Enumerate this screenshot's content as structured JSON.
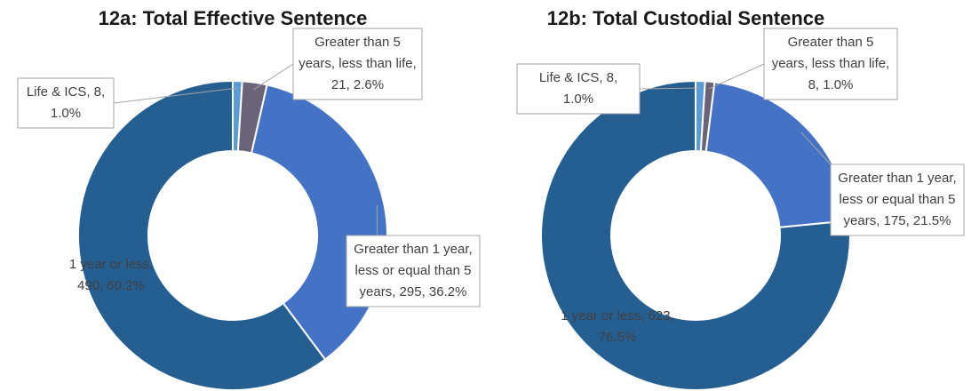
{
  "chart_data": [
    {
      "type": "donut",
      "title": "12a: Total Effective Sentence",
      "categories": [
        "Life & ICS",
        "Greater than 5 years, less than life",
        "Greater than 1 year, less or equal than 5 years",
        "1 year or less"
      ],
      "values": [
        8,
        21,
        295,
        490
      ],
      "value_labels": [
        "Life & ICS, 8, 1.0%",
        "Greater than 5 years, less than life, 21, 2.6%",
        "Greater than 1 year, less or equal than 5 years, 295, 36.2%",
        "1 year or less, 490, 60.2%"
      ],
      "colors": [
        "#5b9bd5",
        "#6b6478",
        "#4472c4",
        "#255e91"
      ]
    },
    {
      "type": "donut",
      "title": "12b: Total Custodial Sentence",
      "categories": [
        "Life & ICS",
        "Greater than 5 years, less than life",
        "Greater than 1 year, less or equal than 5 years",
        "1 year or less"
      ],
      "values": [
        8,
        8,
        175,
        623
      ],
      "value_labels": [
        "Life & ICS, 8, 1.0%",
        "Greater than 5 years, less than life, 8, 1.0%",
        "Greater than 1 year, less or equal than 5 years, 175, 21.5%",
        "1 year or less, 623, 76.5%"
      ],
      "colors": [
        "#5b9bd5",
        "#6b6478",
        "#4472c4",
        "#255e91"
      ]
    }
  ]
}
